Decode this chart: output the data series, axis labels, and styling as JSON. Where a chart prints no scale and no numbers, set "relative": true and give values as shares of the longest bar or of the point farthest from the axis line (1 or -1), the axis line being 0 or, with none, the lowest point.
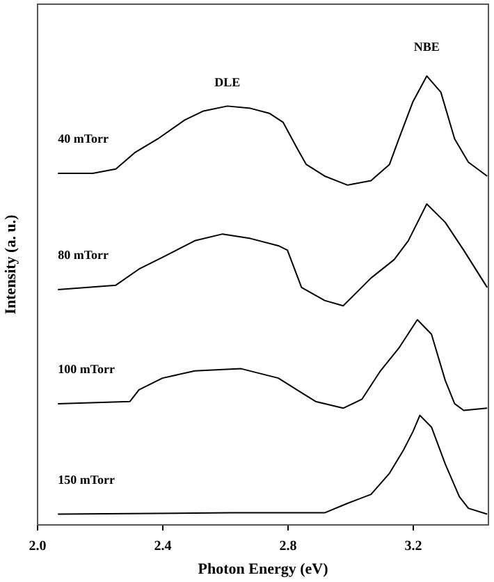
{
  "chart_data": {
    "type": "line",
    "relative": true,
    "xlabel": "Photon Energy (eV)",
    "ylabel": "Intensity (a. u.)",
    "xlim": [
      2.0,
      3.44
    ],
    "xticks": [
      {
        "value": 2.0,
        "label": "2.0"
      },
      {
        "value": 2.4,
        "label": "2.4"
      },
      {
        "value": 2.8,
        "label": "2.8"
      },
      {
        "value": 3.2,
        "label": "3.2"
      }
    ],
    "grid": false,
    "legend": false,
    "marker": "none",
    "line_style": "solid",
    "annotations": [
      "DLE",
      "NBE"
    ],
    "series": [
      {
        "name": "40 mTorr",
        "color": "#000000",
        "x": [
          2.065,
          2.176,
          2.25,
          2.31,
          2.384,
          2.47,
          2.53,
          2.606,
          2.68,
          2.74,
          2.784,
          2.828,
          2.858,
          2.917,
          2.99,
          3.065,
          3.124,
          3.154,
          3.199,
          3.243,
          3.288,
          3.332,
          3.376,
          3.436
        ],
        "values": [
          0.783,
          0.783,
          0.793,
          0.829,
          0.86,
          0.902,
          0.922,
          0.933,
          0.928,
          0.917,
          0.897,
          0.84,
          0.803,
          0.777,
          0.757,
          0.767,
          0.803,
          0.86,
          0.943,
          1,
          0.964,
          0.86,
          0.808,
          0.777
        ]
      },
      {
        "name": "80 mTorr",
        "color": "#000000",
        "x": [
          2.065,
          2.25,
          2.324,
          2.399,
          2.502,
          2.591,
          2.68,
          2.769,
          2.798,
          2.843,
          2.917,
          2.976,
          3.065,
          3.139,
          3.184,
          3.243,
          3.302,
          3.361,
          3.436
        ],
        "values": [
          0.524,
          0.534,
          0.57,
          0.596,
          0.633,
          0.648,
          0.638,
          0.622,
          0.612,
          0.529,
          0.5,
          0.488,
          0.55,
          0.591,
          0.633,
          0.715,
          0.674,
          0.612,
          0.529
        ]
      },
      {
        "name": "100 mTorr",
        "color": "#000000",
        "x": [
          2.065,
          2.295,
          2.324,
          2.399,
          2.502,
          2.65,
          2.769,
          2.828,
          2.888,
          2.976,
          3.036,
          3.095,
          3.154,
          3.213,
          3.258,
          3.302,
          3.332,
          3.361,
          3.436
        ],
        "values": [
          0.27,
          0.275,
          0.301,
          0.327,
          0.343,
          0.348,
          0.327,
          0.301,
          0.275,
          0.26,
          0.28,
          0.343,
          0.394,
          0.457,
          0.425,
          0.322,
          0.27,
          0.255,
          0.26
        ]
      },
      {
        "name": "150 mTorr",
        "color": "#000000",
        "x": [
          2.065,
          2.62,
          2.917,
          2.99,
          3.065,
          3.124,
          3.169,
          3.199,
          3.221,
          3.258,
          3.302,
          3.347,
          3.376,
          3.436
        ],
        "values": [
          0.024,
          0.027,
          0.027,
          0.048,
          0.068,
          0.115,
          0.167,
          0.208,
          0.244,
          0.218,
          0.136,
          0.063,
          0.037,
          0.024
        ]
      }
    ]
  }
}
